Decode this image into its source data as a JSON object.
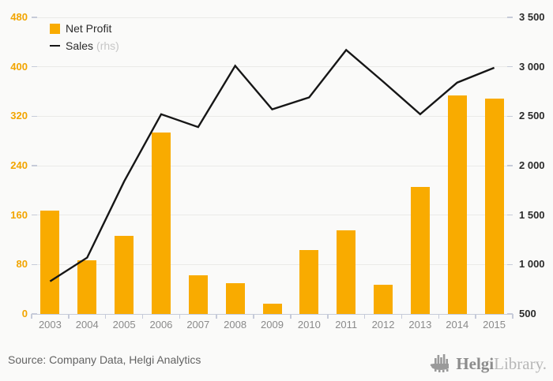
{
  "chart_data": {
    "type": "bar",
    "categories": [
      "2003",
      "2004",
      "2005",
      "2006",
      "2007",
      "2008",
      "2009",
      "2010",
      "2011",
      "2012",
      "2013",
      "2014",
      "2015"
    ],
    "series": [
      {
        "name": "Net Profit",
        "kind": "bar",
        "axis": "left",
        "values": [
          167,
          87,
          126,
          293,
          63,
          50,
          17,
          103,
          135,
          47,
          205,
          353,
          348
        ]
      },
      {
        "name": "Sales",
        "kind": "line",
        "axis": "right",
        "values": [
          830,
          1070,
          1840,
          2520,
          2390,
          3010,
          2570,
          2690,
          3170,
          2850,
          2520,
          2840,
          2990
        ]
      }
    ],
    "title": "",
    "xlabel": "",
    "ylabel": "",
    "left_axis": {
      "min": 0,
      "max": 480,
      "step": 80,
      "ticks": [
        "0",
        "80",
        "160",
        "240",
        "320",
        "400",
        "480"
      ]
    },
    "right_axis": {
      "min": 500,
      "max": 3500,
      "step": 500,
      "ticks": [
        "500",
        "1 000",
        "1 500",
        "2 000",
        "2 500",
        "3 000",
        "3 500"
      ]
    },
    "grid": true,
    "legend_position": "top-left"
  },
  "legend": {
    "items": [
      {
        "label": "Net Profit",
        "suffix": ""
      },
      {
        "label": "Sales",
        "suffix": "(rhs)"
      }
    ]
  },
  "footer": {
    "source": "Source: Company Data, Helgi Analytics",
    "logo_primary": "Helgi",
    "logo_secondary": "Library."
  },
  "colors": {
    "accent_orange": "#F9AB00",
    "line_black": "#161616",
    "grid": "#EAEAE8",
    "axis": "#C6CBD9",
    "left_label": "#F2A500",
    "right_label": "#2B2B2B",
    "x_label": "#8A8A8A",
    "background": "#FAFAF9"
  }
}
